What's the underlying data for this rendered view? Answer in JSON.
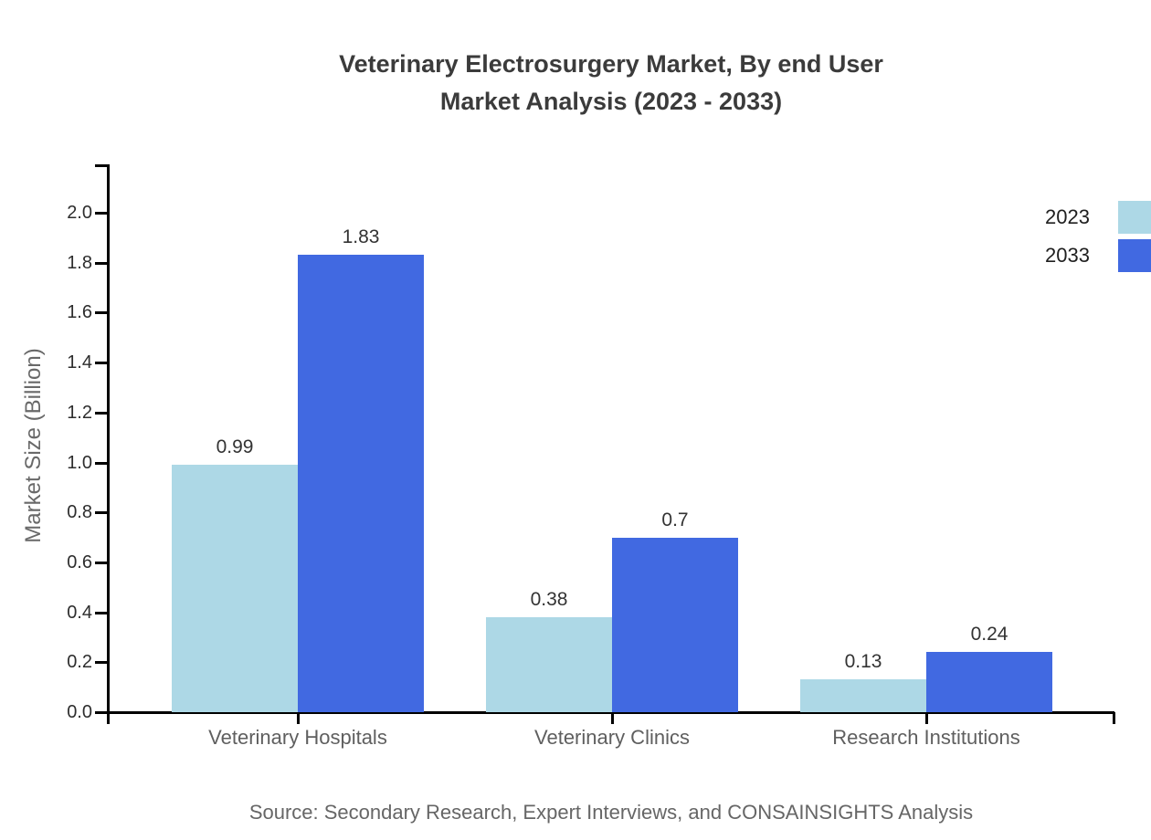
{
  "title": {
    "line1": "Veterinary Electrosurgery Market, By end User",
    "line2": "Market Analysis (2023 - 2033)"
  },
  "chart_data": {
    "type": "bar",
    "categories": [
      "Veterinary Hospitals",
      "Veterinary Clinics",
      "Research Institutions"
    ],
    "series": [
      {
        "name": "2023",
        "color": "#ADD8E6",
        "values": [
          0.99,
          0.38,
          0.13
        ]
      },
      {
        "name": "2033",
        "color": "#4169E1",
        "values": [
          1.83,
          0.7,
          0.24
        ]
      }
    ],
    "xlabel": "",
    "ylabel": "Market Size (Billion)",
    "ylim": [
      0,
      2.2
    ],
    "ytick_labels": [
      "0.0",
      "0.2",
      "0.4",
      "0.6",
      "0.8",
      "1.0",
      "1.2",
      "1.4",
      "1.6",
      "1.8",
      "2.0"
    ],
    "grid": false,
    "legend_position": "top-right",
    "value_labels_shown": true
  },
  "footer": {
    "source": "Source: Secondary Research, Expert Interviews, and CONSAINSIGHTS Analysis"
  },
  "colors": {
    "series_2023": "#ADD8E6",
    "series_2033": "#4169E1",
    "axis": "#000000",
    "title_text": "#3b3b3b",
    "tick_text": "#2d2d2d",
    "value_text": "#333333",
    "muted_text": "#666666"
  }
}
